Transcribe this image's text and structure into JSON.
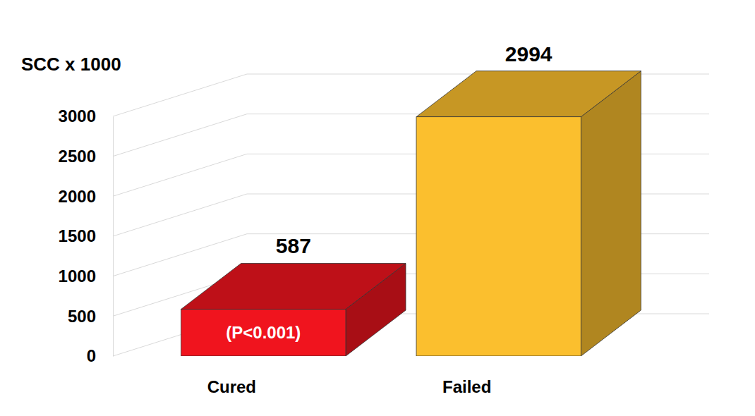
{
  "chart_data": {
    "type": "bar",
    "y_label": "SCC x 1000",
    "categories": [
      "Cured",
      "Failed"
    ],
    "values": [
      587,
      2994
    ],
    "colors": [
      "#f0141e",
      "#fbbf2e"
    ],
    "ylim": [
      0,
      3000
    ],
    "yticks": [
      0,
      500,
      1000,
      1500,
      2000,
      2500,
      3000
    ],
    "grid": true,
    "data_labels": true,
    "annotation": "(P<0.001)"
  }
}
